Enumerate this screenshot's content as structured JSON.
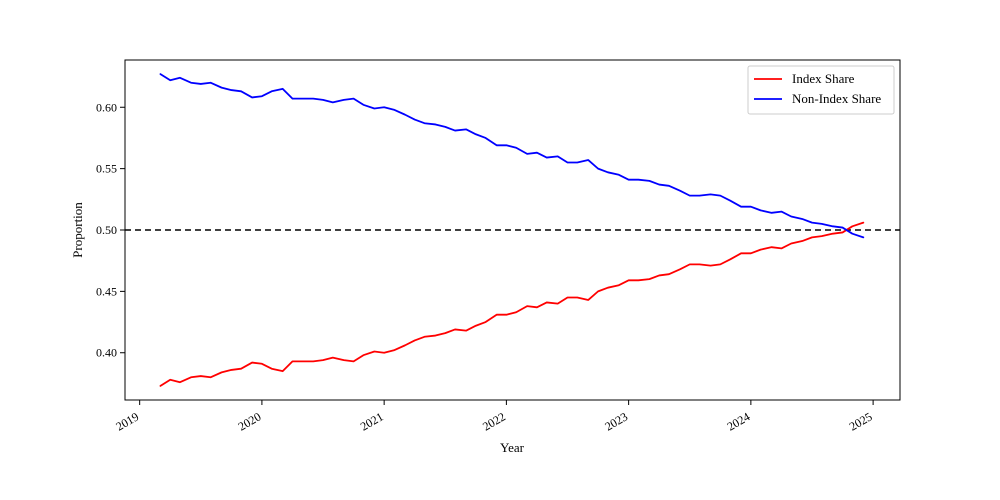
{
  "chart_data": {
    "type": "line",
    "xlabel": "Year",
    "ylabel": "Proportion",
    "xlim": [
      2018.88,
      2025.22
    ],
    "ylim": [
      0.3615,
      0.6385
    ],
    "x_ticks": [
      2019,
      2020,
      2021,
      2022,
      2023,
      2024,
      2025
    ],
    "x_tick_labels": [
      "2019",
      "2020",
      "2021",
      "2022",
      "2023",
      "2024",
      "2025"
    ],
    "y_ticks": [
      0.4,
      0.45,
      0.5,
      0.55,
      0.6
    ],
    "y_tick_labels": [
      "0.40",
      "0.45",
      "0.50",
      "0.55",
      "0.60"
    ],
    "grid": false,
    "legend_position": "top-right",
    "reference_line": {
      "y": 0.5,
      "style": "dashed",
      "color": "#000000"
    },
    "x": [
      2019.17,
      2019.25,
      2019.33,
      2019.42,
      2019.5,
      2019.58,
      2019.67,
      2019.75,
      2019.83,
      2019.92,
      2020.0,
      2020.08,
      2020.17,
      2020.25,
      2020.33,
      2020.42,
      2020.5,
      2020.58,
      2020.67,
      2020.75,
      2020.83,
      2020.92,
      2021.0,
      2021.08,
      2021.17,
      2021.25,
      2021.33,
      2021.42,
      2021.5,
      2021.58,
      2021.67,
      2021.75,
      2021.83,
      2021.92,
      2022.0,
      2022.08,
      2022.17,
      2022.25,
      2022.33,
      2022.42,
      2022.5,
      2022.58,
      2022.67,
      2022.75,
      2022.83,
      2022.92,
      2023.0,
      2023.08,
      2023.17,
      2023.25,
      2023.33,
      2023.42,
      2023.5,
      2023.58,
      2023.67,
      2023.75,
      2023.83,
      2023.92,
      2024.0,
      2024.08,
      2024.17,
      2024.25,
      2024.33,
      2024.42,
      2024.5,
      2024.58,
      2024.67,
      2024.75,
      2024.83,
      2024.92
    ],
    "series": [
      {
        "name": "Index Share",
        "color": "#ff0000",
        "values": [
          0.373,
          0.378,
          0.376,
          0.38,
          0.381,
          0.38,
          0.384,
          0.386,
          0.387,
          0.392,
          0.391,
          0.387,
          0.385,
          0.393,
          0.393,
          0.393,
          0.394,
          0.396,
          0.394,
          0.393,
          0.398,
          0.401,
          0.4,
          0.402,
          0.406,
          0.41,
          0.413,
          0.414,
          0.416,
          0.419,
          0.418,
          0.422,
          0.425,
          0.431,
          0.431,
          0.433,
          0.438,
          0.437,
          0.441,
          0.44,
          0.445,
          0.445,
          0.443,
          0.45,
          0.453,
          0.455,
          0.459,
          0.459,
          0.46,
          0.463,
          0.464,
          0.468,
          0.472,
          0.472,
          0.471,
          0.472,
          0.476,
          0.481,
          0.481,
          0.484,
          0.486,
          0.485,
          0.489,
          0.491,
          0.494,
          0.495,
          0.497,
          0.498,
          0.503,
          0.506
        ]
      },
      {
        "name": "Non-Index Share",
        "color": "#0000ff",
        "values": [
          0.627,
          0.622,
          0.624,
          0.62,
          0.619,
          0.62,
          0.616,
          0.614,
          0.613,
          0.608,
          0.609,
          0.613,
          0.615,
          0.607,
          0.607,
          0.607,
          0.606,
          0.604,
          0.606,
          0.607,
          0.602,
          0.599,
          0.6,
          0.598,
          0.594,
          0.59,
          0.587,
          0.586,
          0.584,
          0.581,
          0.582,
          0.578,
          0.575,
          0.569,
          0.569,
          0.567,
          0.562,
          0.563,
          0.559,
          0.56,
          0.555,
          0.555,
          0.557,
          0.55,
          0.547,
          0.545,
          0.541,
          0.541,
          0.54,
          0.537,
          0.536,
          0.532,
          0.528,
          0.528,
          0.529,
          0.528,
          0.524,
          0.519,
          0.519,
          0.516,
          0.514,
          0.515,
          0.511,
          0.509,
          0.506,
          0.505,
          0.503,
          0.502,
          0.497,
          0.494
        ]
      }
    ]
  }
}
